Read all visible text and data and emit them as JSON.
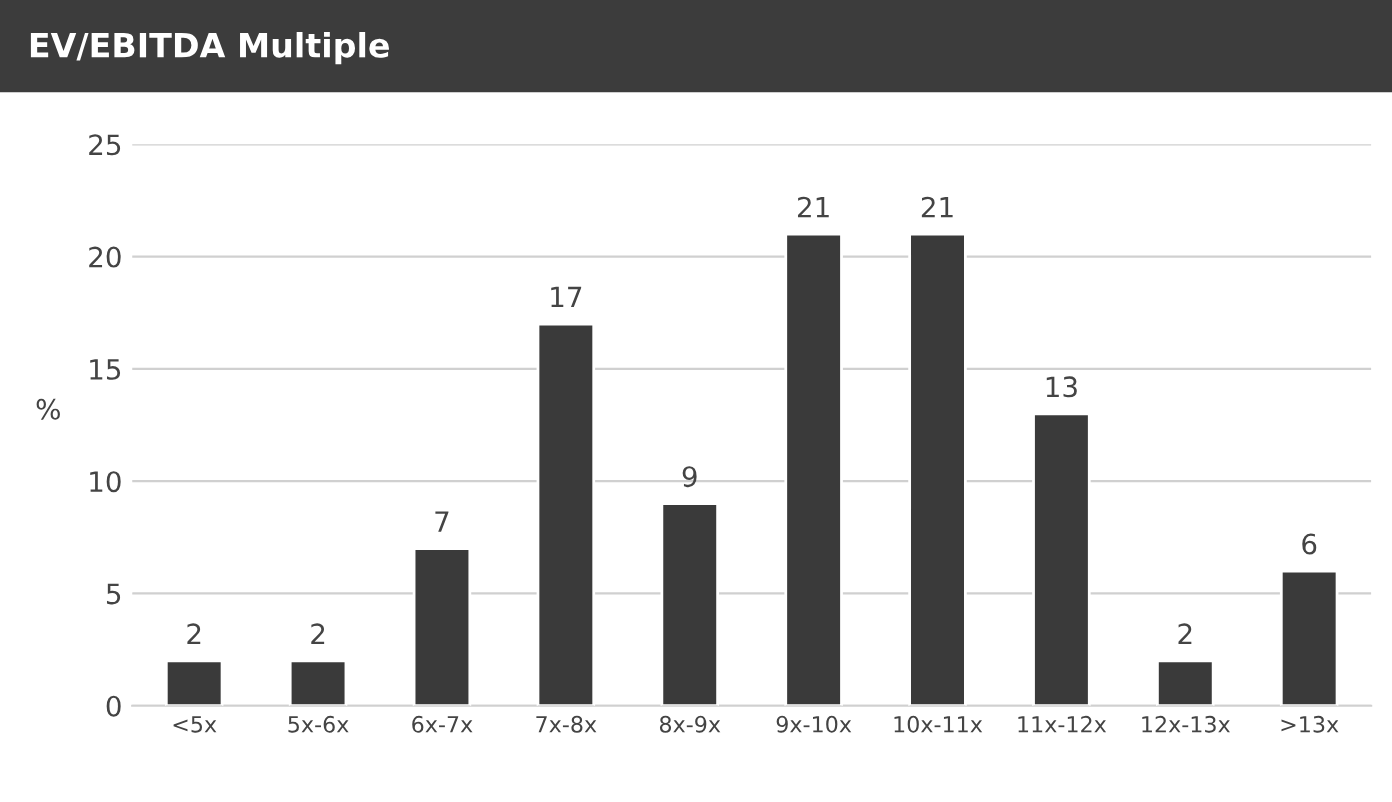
{
  "chart_data": {
    "type": "bar",
    "title": "EV/EBITDA Multiple",
    "ylabel": "%",
    "categories": [
      "<5x",
      "5x-6x",
      "6x-7x",
      "7x-8x",
      "8x-9x",
      "9x-10x",
      "10x-11x",
      "11x-12x",
      "12x-13x",
      ">13x"
    ],
    "values": [
      2,
      2,
      7,
      17,
      9,
      21,
      21,
      13,
      2,
      6
    ],
    "color": "#3a3a3a",
    "ylim": [
      0,
      25
    ],
    "yticks": [
      0,
      5,
      10,
      15,
      20,
      25
    ],
    "grid": "y",
    "data_labels": true
  }
}
